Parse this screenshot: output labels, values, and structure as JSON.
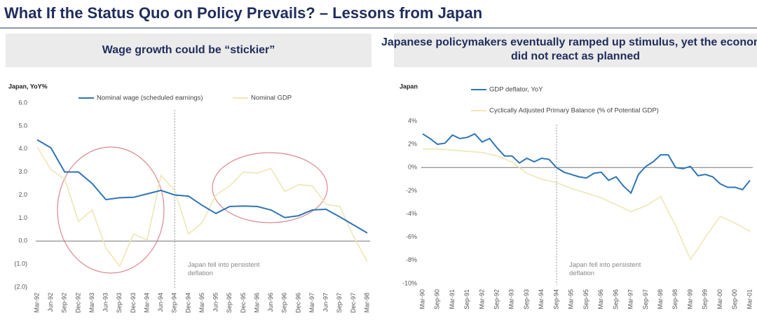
{
  "slide_title": "What If the Status Quo on Policy Prevails? – Lessons from Japan",
  "chart_data": [
    {
      "type": "line",
      "title": "Wage growth could be “stickier”",
      "ylabel": "Japan, YoY%",
      "categories": [
        "Mar-92",
        "Jun-92",
        "Sep-92",
        "Dec-92",
        "Mar-93",
        "Jun-93",
        "Sep-93",
        "Dec-93",
        "Mar-94",
        "Jun-94",
        "Sep-94",
        "Dec-94",
        "Mar-95",
        "Jun-95",
        "Sep-95",
        "Dec-95",
        "Mar-96",
        "Jun-96",
        "Sep-96",
        "Dec-96",
        "Mar-97",
        "Jun-97",
        "Sep-97",
        "Dec-97",
        "Mar-98"
      ],
      "series": [
        {
          "name": "Nominal wage (scheduled earnings)",
          "color": "#2e75b6",
          "values": [
            4.4,
            4.05,
            3.0,
            3.0,
            2.5,
            1.8,
            1.88,
            1.9,
            2.05,
            2.2,
            2.0,
            1.95,
            1.55,
            1.2,
            1.5,
            1.52,
            1.5,
            1.35,
            1.02,
            1.1,
            1.35,
            1.38,
            1.05,
            0.7,
            0.35
          ]
        },
        {
          "name": "Nominal GDP",
          "color": "#efe6b5",
          "values": [
            4.1,
            3.1,
            2.7,
            0.85,
            1.35,
            -0.3,
            -1.1,
            0.3,
            0.05,
            2.85,
            2.2,
            0.3,
            0.8,
            2.0,
            2.4,
            3.0,
            2.95,
            3.15,
            2.15,
            2.45,
            2.4,
            1.6,
            1.5,
            0.2,
            -0.9
          ]
        }
      ],
      "ylim": [
        -2,
        6
      ],
      "yticks": [
        {
          "value": 6,
          "label": "6.0"
        },
        {
          "value": 5,
          "label": "5.0"
        },
        {
          "value": 4,
          "label": "4.0"
        },
        {
          "value": 3,
          "label": "3.0"
        },
        {
          "value": 2,
          "label": "2.0"
        },
        {
          "value": 1,
          "label": "1.0"
        },
        {
          "value": 0,
          "label": "0.0"
        },
        {
          "value": -1,
          "label": "(1.0)"
        },
        {
          "value": -2,
          "label": "(2.0)"
        }
      ],
      "annotation": "Japan fell into persistent deflation",
      "legend": "top"
    },
    {
      "type": "line",
      "title": "Japanese policymakers eventually ramped up stimulus, yet the economy did not react as planned",
      "ylabel": "Japan",
      "categories": [
        "Mar-90",
        null,
        "Sep-90",
        null,
        "Mar-91",
        null,
        "Sep-91",
        null,
        "Mar-92",
        null,
        "Sep-92",
        null,
        "Mar-93",
        null,
        "Sep-93",
        null,
        "Mar-94",
        null,
        "Sep-94",
        null,
        "Mar-95",
        null,
        "Sep-95",
        null,
        "Mar-96",
        null,
        "Sep-96",
        null,
        "Mar-97",
        null,
        "Sep-97",
        null,
        "Mar-98",
        null,
        "Sep-98",
        null,
        "Mar-99",
        null,
        "Sep-99",
        null,
        "Mar-00",
        null,
        "Sep-00",
        null,
        "Mar-01"
      ],
      "series": [
        {
          "name": "GDP deflator, YoY",
          "color": "#2e75b6",
          "values": [
            2.9,
            2.5,
            2.0,
            2.1,
            2.8,
            2.5,
            2.6,
            2.9,
            2.2,
            2.5,
            1.7,
            1.0,
            1.0,
            0.4,
            0.8,
            0.5,
            0.8,
            0.7,
            0.0,
            -0.4,
            -0.6,
            -0.8,
            -0.9,
            -0.5,
            -0.4,
            -1.1,
            -0.8,
            -1.6,
            -2.2,
            -0.6,
            0.1,
            0.5,
            1.1,
            1.1,
            0.0,
            -0.1,
            0.1,
            -0.7,
            -0.6,
            -0.8,
            -1.4,
            -1.7,
            -1.7,
            -1.9,
            -1.1
          ]
        },
        {
          "name": "Cyclically Adjusted Primary Balance (% of Potential GDP)",
          "color": "#efe6b5",
          "values": [
            1.6,
            1.6,
            1.6,
            1.55,
            1.5,
            1.45,
            1.4,
            1.35,
            1.3,
            1.15,
            1.0,
            0.75,
            0.5,
            0.0,
            -0.5,
            -0.75,
            -1.0,
            -1.15,
            -1.3,
            -1.55,
            -1.8,
            -2.0,
            -2.2,
            -2.4,
            -2.6,
            -2.9,
            -3.2,
            -3.5,
            -3.8,
            -3.55,
            -3.3,
            -2.9,
            -2.5,
            -3.8,
            -5.0,
            -6.5,
            -7.9,
            -7.0,
            -6.0,
            -5.1,
            -4.2,
            -4.5,
            -4.8,
            -5.15,
            -5.5
          ]
        }
      ],
      "ylim": [
        -10,
        4
      ],
      "yticks": [
        {
          "value": 4,
          "label": "4%"
        },
        {
          "value": 2,
          "label": "2%"
        },
        {
          "value": 0,
          "label": "0%"
        },
        {
          "value": -2,
          "label": "-2%"
        },
        {
          "value": -4,
          "label": "-4%"
        },
        {
          "value": -6,
          "label": "-6%"
        },
        {
          "value": -8,
          "label": "-8%"
        },
        {
          "value": -10,
          "label": "-10%"
        }
      ],
      "annotation": "Japan fell into persistent deflation",
      "legend": "top-left"
    }
  ]
}
